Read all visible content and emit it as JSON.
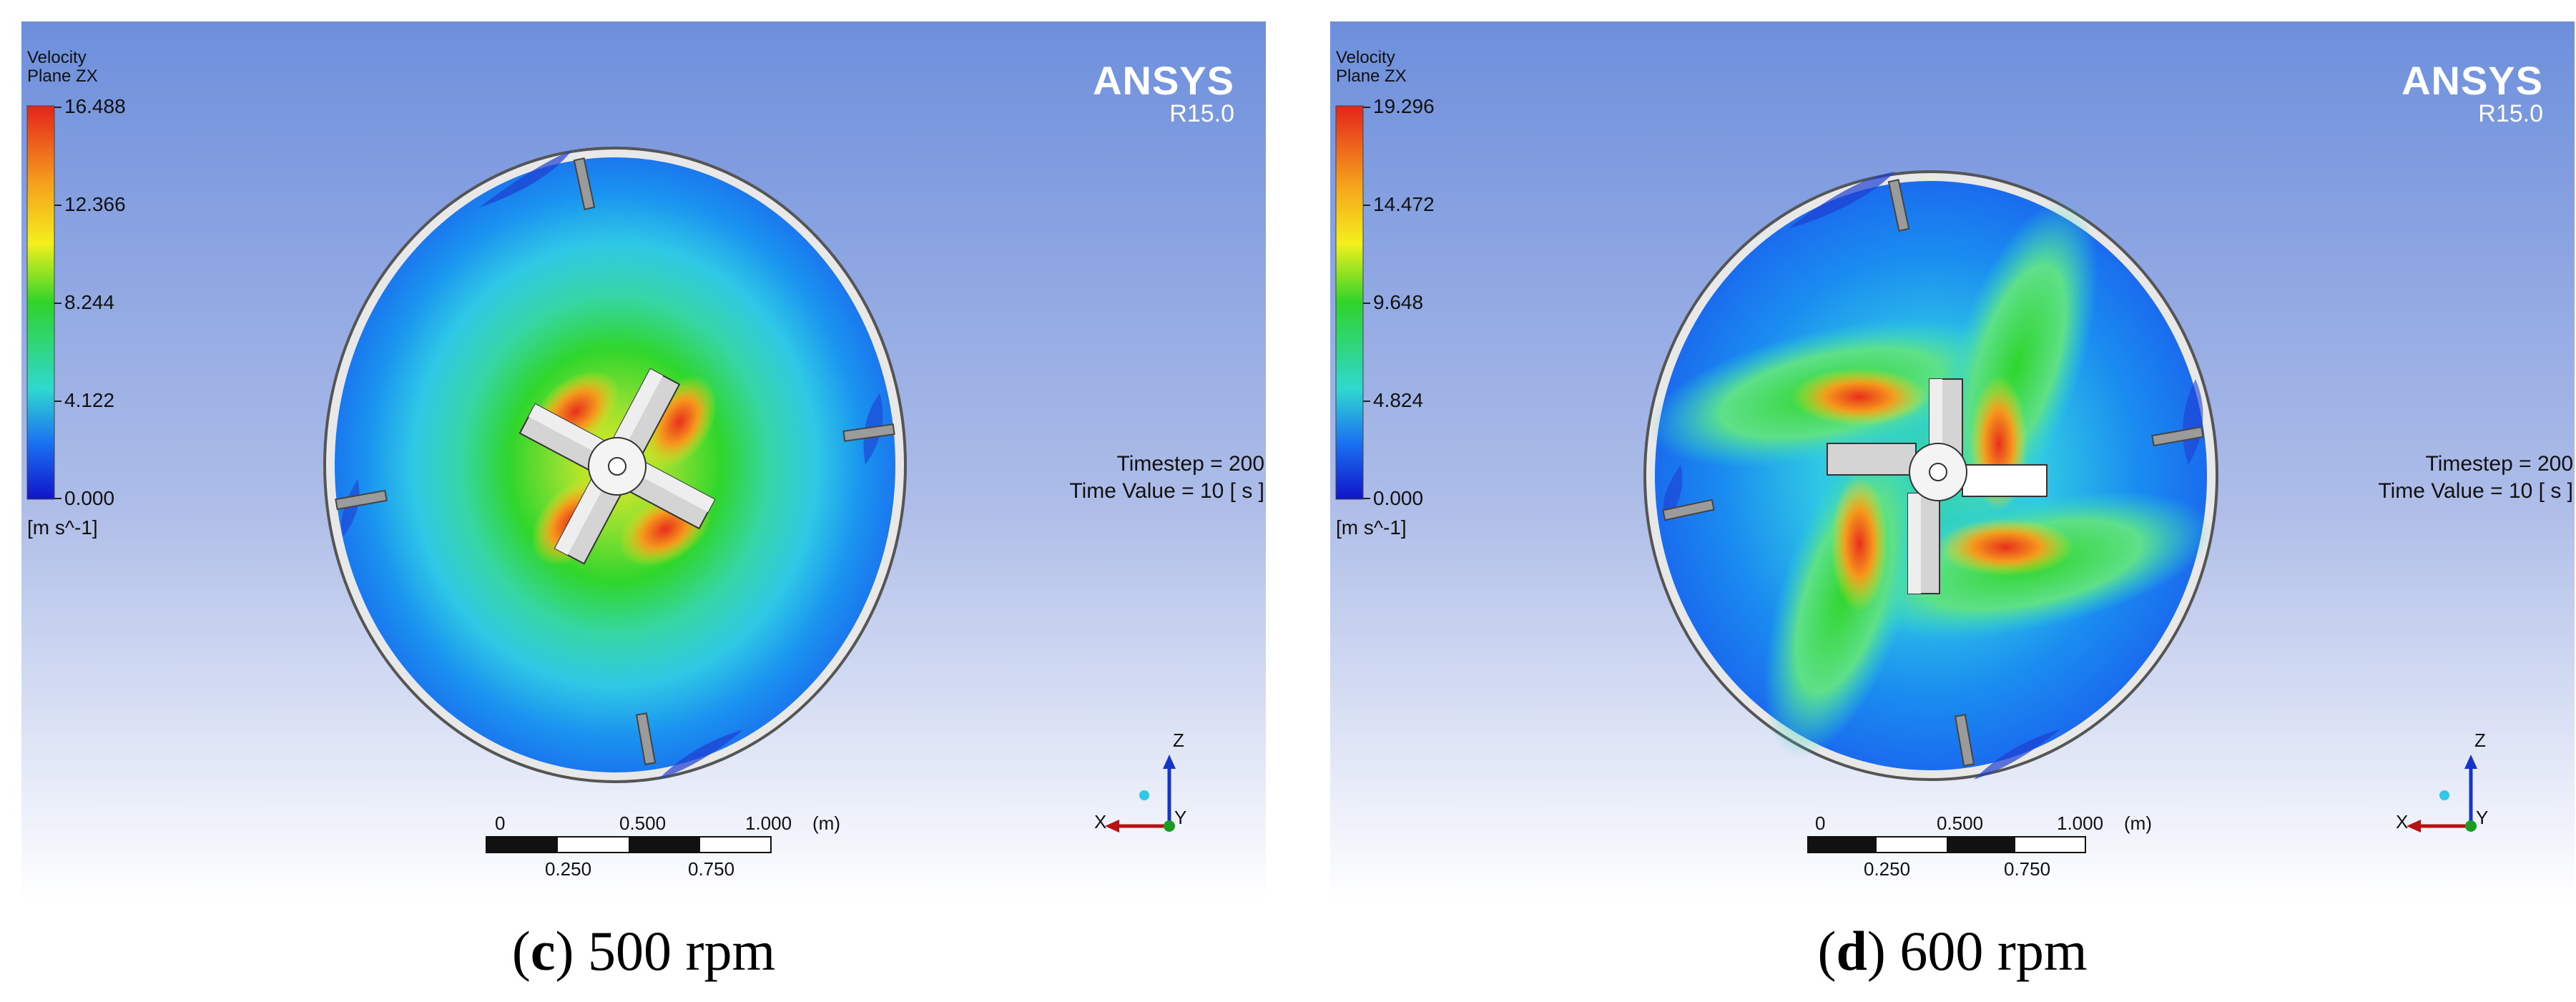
{
  "panels": [
    {
      "id": "c",
      "legend": {
        "title": "Velocity",
        "subtitle": "Plane ZX",
        "ticks": [
          "16.488",
          "12.366",
          "8.244",
          "4.122",
          "0.000"
        ],
        "unit": "[m s^-1]"
      },
      "brand": "ANSYS",
      "version": "R15.0",
      "timestep": "Timestep = 200",
      "time_value": "Time Value = 10 [ s ]",
      "scale": {
        "top_labels": [
          "0",
          "0.500",
          "1.000"
        ],
        "unit": "(m)",
        "bottom_labels": [
          "0.250",
          "0.750"
        ]
      },
      "axes": {
        "z": "Z",
        "x": "X",
        "y": "Y"
      },
      "caption": {
        "letter": "c",
        "text": " 500 rpm"
      }
    },
    {
      "id": "d",
      "legend": {
        "title": "Velocity",
        "subtitle": "Plane ZX",
        "ticks": [
          "19.296",
          "14.472",
          "9.648",
          "4.824",
          "0.000"
        ],
        "unit": "[m s^-1]"
      },
      "brand": "ANSYS",
      "version": "R15.0",
      "timestep": "Timestep = 200",
      "time_value": "Time Value = 10 [ s ]",
      "scale": {
        "top_labels": [
          "0",
          "0.500",
          "1.000"
        ],
        "unit": "(m)",
        "bottom_labels": [
          "0.250",
          "0.750"
        ]
      },
      "axes": {
        "z": "Z",
        "x": "X",
        "y": "Y"
      },
      "caption": {
        "letter": "d",
        "text": " 600 rpm"
      }
    }
  ],
  "colors": {
    "background_top": "#6d8fdc",
    "background_bottom": "#ffffff",
    "colormap": [
      "#e4241b",
      "#f5a11c",
      "#f3f01c",
      "#2fd42a",
      "#2fd8d0",
      "#1a6ff2",
      "#1014c9"
    ],
    "axis_z": "#1535c8",
    "axis_x": "#b41414",
    "axis_y": "#1a9c22"
  }
}
